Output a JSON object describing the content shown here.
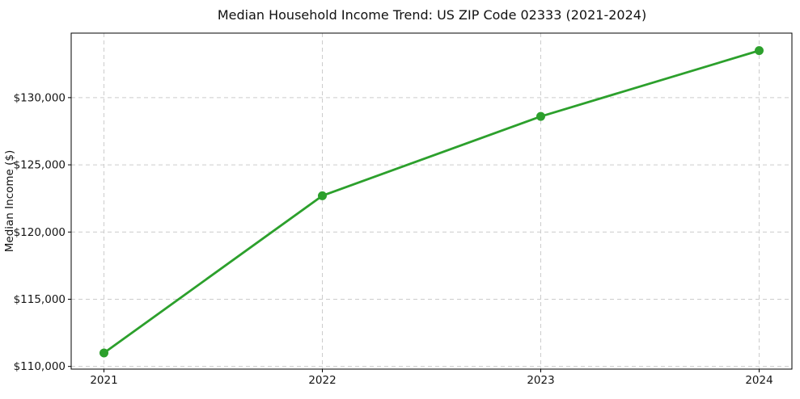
{
  "chart_data": {
    "type": "line",
    "title": "Median Household Income Trend: US ZIP Code 02333 (2021-2024)",
    "xlabel": "",
    "ylabel": "Median Income ($)",
    "x": [
      2021,
      2022,
      2023,
      2024
    ],
    "series": [
      {
        "name": "Median Household Income",
        "values": [
          111000,
          122700,
          128600,
          133500
        ]
      }
    ],
    "xticks": {
      "values": [
        2021,
        2022,
        2023,
        2024
      ],
      "labels": [
        "2021",
        "2022",
        "2023",
        "2024"
      ]
    },
    "yticks": {
      "values": [
        110000,
        115000,
        120000,
        125000,
        130000
      ],
      "labels": [
        "$110,000",
        "$115,000",
        "$120,000",
        "$125,000",
        "$130,000"
      ]
    },
    "xlim": [
      2020.85,
      2024.15
    ],
    "ylim": [
      109800,
      134800
    ],
    "grid": {
      "visible": true,
      "style": "dashed",
      "color": "#cccccc"
    },
    "legend": "none",
    "line_color": "#2ca02c",
    "marker": "circle",
    "marker_radius": 5.5,
    "line_width": 2.8,
    "background": "#ffffff"
  }
}
